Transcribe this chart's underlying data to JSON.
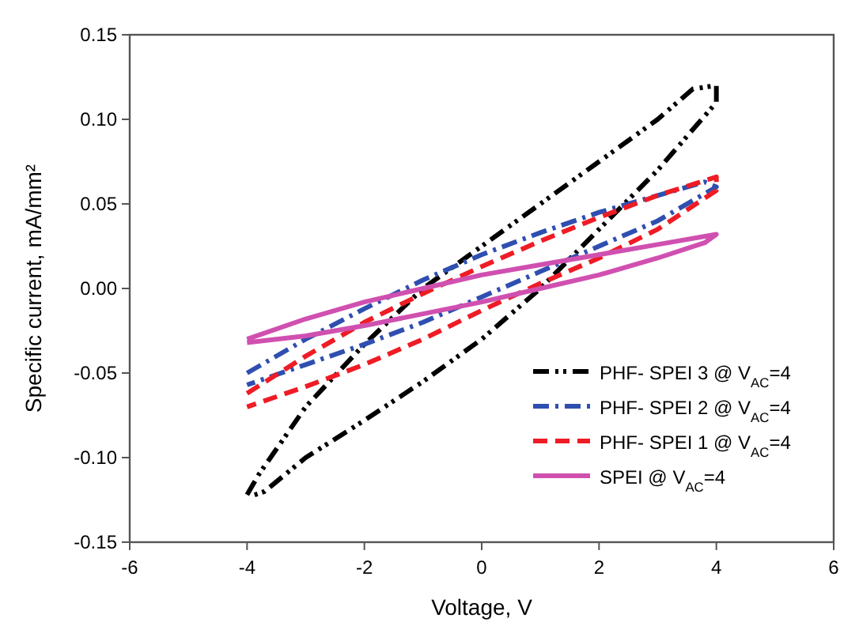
{
  "chart_data": {
    "type": "line",
    "xlabel": "Voltage, V",
    "ylabel": "Specific current, mA/mm²",
    "xlim": [
      -6,
      6
    ],
    "xticks": [
      -6,
      -4,
      -2,
      0,
      2,
      4,
      6
    ],
    "ylim": [
      -0.15,
      0.15
    ],
    "yticks": [
      {
        "value": -0.15,
        "label": "-0.15"
      },
      {
        "value": -0.1,
        "label": "-0.10"
      },
      {
        "value": -0.05,
        "label": "-0.05"
      },
      {
        "value": 0,
        "label": "0.00"
      },
      {
        "value": 0.05,
        "label": "0.05"
      },
      {
        "value": 0.1,
        "label": "0.10"
      },
      {
        "value": 0.15,
        "label": "0.15"
      }
    ],
    "grid": false,
    "legend": "bottom right",
    "marker": "none",
    "series": [
      {
        "name": "PHF- SPEI 3 @ V$_{AC}$=4",
        "color": "#000000",
        "line_style": "dashdotdot",
        "x": [
          -4,
          -3.8,
          -3,
          -2,
          -1,
          0,
          1,
          2,
          3,
          3.6,
          4,
          4,
          3,
          2,
          1,
          0,
          -1,
          -2,
          -3,
          -3.7,
          -3.95
        ],
        "values": [
          -0.122,
          -0.11,
          -0.07,
          -0.033,
          0,
          0.025,
          0.05,
          0.075,
          0.1,
          0.118,
          0.12,
          0.11,
          0.07,
          0.035,
          0,
          -0.03,
          -0.055,
          -0.078,
          -0.1,
          -0.12,
          -0.123
        ]
      },
      {
        "name": "PHF- SPEI 2 @ V$_{AC}$=4",
        "color": "#2f4fb0",
        "line_style": "dashdot",
        "x": [
          -4,
          -3,
          -2,
          -1,
          0,
          1,
          2,
          3,
          3.8,
          4,
          3,
          2,
          1,
          0,
          -1,
          -2,
          -3,
          -4
        ],
        "values": [
          -0.05,
          -0.03,
          -0.012,
          0.005,
          0.02,
          0.033,
          0.045,
          0.055,
          0.063,
          0.06,
          0.04,
          0.025,
          0.01,
          -0.005,
          -0.02,
          -0.033,
          -0.045,
          -0.057
        ]
      },
      {
        "name": "PHF- SPEI 1 @ V$_{AC}$=4",
        "color": "#ee1c25",
        "line_style": "dashed",
        "x": [
          -4,
          -3,
          -2,
          -1,
          0,
          1,
          2,
          3,
          4,
          4,
          3,
          2,
          1,
          0,
          -1,
          -2,
          -3,
          -4
        ],
        "values": [
          -0.062,
          -0.04,
          -0.02,
          -0.003,
          0.013,
          0.028,
          0.042,
          0.055,
          0.066,
          0.058,
          0.035,
          0.018,
          0.003,
          -0.013,
          -0.03,
          -0.045,
          -0.058,
          -0.07
        ]
      },
      {
        "name": "SPEI @ V$_{AC}$=4",
        "color": "#d050b0",
        "line_style": "solid",
        "x": [
          -4,
          -3,
          -2,
          -1,
          0,
          1,
          2,
          3,
          4,
          3.8,
          3,
          2,
          1,
          0,
          -1,
          -2,
          -3,
          -4
        ],
        "values": [
          -0.03,
          -0.018,
          -0.008,
          0,
          0.008,
          0.014,
          0.02,
          0.026,
          0.032,
          0.027,
          0.018,
          0.008,
          0,
          -0.008,
          -0.015,
          -0.022,
          -0.028,
          -0.032
        ]
      }
    ]
  }
}
